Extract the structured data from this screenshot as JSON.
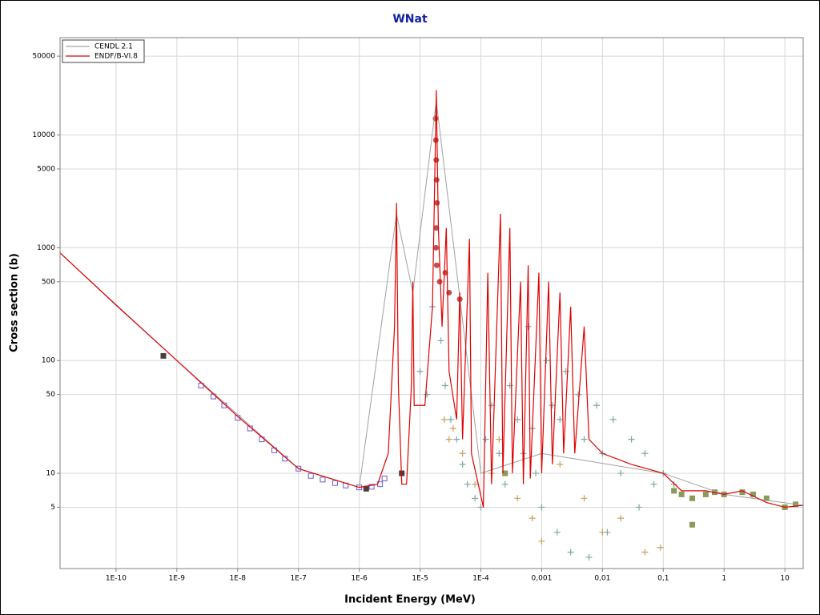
{
  "chart_data": {
    "type": "line",
    "title": "WNat",
    "xlabel": "Incident Energy (MeV)",
    "ylabel": "Cross section (b)",
    "xscale": "log",
    "yscale": "log",
    "grid": true,
    "legend": "upper left",
    "xlim": [
      1.2e-11,
      20
    ],
    "ylim": [
      1.43,
      73000
    ],
    "xticks": [
      {
        "value": 1e-10,
        "label": "1E-10"
      },
      {
        "value": 1e-09,
        "label": "1E-9"
      },
      {
        "value": 1e-08,
        "label": "1E-8"
      },
      {
        "value": 1e-07,
        "label": "1E-7"
      },
      {
        "value": 1e-06,
        "label": "1E-6"
      },
      {
        "value": 1e-05,
        "label": "1E-5"
      },
      {
        "value": 0.0001,
        "label": "1E-4"
      },
      {
        "value": 0.001,
        "label": "0,001"
      },
      {
        "value": 0.01,
        "label": "0,01"
      },
      {
        "value": 0.1,
        "label": "0,1"
      },
      1,
      10
    ],
    "yticks": [
      5,
      10,
      50,
      100,
      500,
      1000,
      5000,
      10000,
      50000
    ],
    "series": [
      {
        "name": "CENDL 2.1",
        "color": "#a0a0a0",
        "x": [
          1.2e-11,
          1e-09,
          1e-07,
          1e-06,
          4.1e-06,
          7.6e-06,
          1.85e-05,
          0.0001,
          0.001,
          0.1,
          1,
          20
        ],
        "values": [
          900,
          100,
          11,
          7.5,
          2000,
          400,
          20000,
          10,
          15,
          10,
          6.5,
          5.2
        ]
      },
      {
        "name": "ENDF/B-VI.8",
        "color": "#e00000",
        "x": [
          1.2e-11,
          1e-10,
          1e-09,
          1e-08,
          1e-07,
          1e-06,
          2e-06,
          3e-06,
          3.8e-06,
          4.1e-06,
          4.4e-06,
          5e-06,
          6e-06,
          7.2e-06,
          7.6e-06,
          8e-06,
          1.2e-05,
          1.6e-05,
          1.85e-05,
          2e-05,
          2.3e-05,
          2.7e-05,
          3e-05,
          4e-05,
          4.5e-05,
          5e-05,
          6.5e-05,
          7e-05,
          0.00011,
          0.00013,
          0.00015,
          0.00021,
          0.00023,
          0.0003,
          0.00033,
          0.00045,
          0.0005,
          0.0006,
          0.00065,
          0.0009,
          0.001,
          0.0013,
          0.0015,
          0.002,
          0.0023,
          0.003,
          0.0035,
          0.005,
          0.006,
          0.01,
          0.03,
          0.1,
          0.2,
          0.5,
          1,
          2,
          5,
          10,
          20
        ],
        "values": [
          900,
          310,
          100,
          32,
          11,
          7.5,
          8,
          15,
          200,
          2500,
          60,
          8,
          8,
          60,
          500,
          40,
          40,
          300,
          25000,
          1500,
          200,
          1500,
          80,
          30,
          400,
          20,
          1200,
          15,
          5,
          600,
          8,
          2000,
          10,
          1500,
          10,
          500,
          8,
          700,
          9,
          600,
          10,
          500,
          12,
          400,
          15,
          300,
          15,
          200,
          20,
          15,
          12,
          10,
          7,
          7,
          6.5,
          7,
          5.5,
          5,
          5.2
        ]
      }
    ],
    "points": [
      {
        "color": "#7fa6a6",
        "marker": "cross",
        "x": [
          1e-05,
          1.3e-05,
          1.6e-05,
          2.2e-05,
          2.6e-05,
          3.2e-05,
          4e-05,
          5e-05,
          6e-05,
          8e-05,
          0.0001,
          0.00012,
          0.00015,
          0.0002,
          0.00025,
          0.0003,
          0.0004,
          0.0005,
          0.0006,
          0.0007,
          0.0008,
          0.001,
          0.0012,
          0.0015,
          0.0018,
          0.002,
          0.0025,
          0.003,
          0.004,
          0.005,
          0.006,
          0.008,
          0.01,
          0.012,
          0.015,
          0.02,
          0.03,
          0.04,
          0.05,
          0.07,
          0.1,
          0.15
        ],
        "y": [
          80,
          50,
          300,
          150,
          60,
          30,
          20,
          12,
          8,
          6,
          5,
          20,
          40,
          15,
          8,
          60,
          30,
          15,
          200,
          25,
          10,
          5,
          100,
          40,
          3,
          30,
          80,
          2,
          50,
          20,
          1.8,
          40,
          15,
          3,
          30,
          10,
          20,
          5,
          15,
          8,
          10,
          8
        ]
      },
      {
        "color": "#c8a060",
        "marker": "cross",
        "x": [
          2.5e-05,
          3e-05,
          3.5e-05,
          5e-05,
          8e-05,
          0.00015,
          0.0002,
          0.0004,
          0.0007,
          0.001,
          0.002,
          0.005,
          0.01,
          0.02,
          0.05,
          0.09
        ],
        "y": [
          30,
          20,
          25,
          15,
          8,
          10,
          20,
          6,
          4,
          2.5,
          12,
          6,
          3,
          4,
          2,
          2.2
        ]
      },
      {
        "color": "#6a5acd",
        "marker": "open-square",
        "x": [
          2.5e-09,
          4e-09,
          6e-09,
          1e-08,
          1.6e-08,
          2.5e-08,
          4e-08,
          6e-08,
          1e-07,
          1.6e-07,
          2.5e-07,
          4e-07,
          6e-07,
          1e-06,
          1.6e-06,
          2.2e-06,
          2.6e-06
        ],
        "y": [
          60,
          48,
          40,
          31,
          25,
          20,
          16,
          13.5,
          11,
          9.5,
          8.8,
          8.2,
          7.8,
          7.5,
          7.6,
          8,
          9
        ]
      },
      {
        "color": "#c0504d",
        "marker": "circle",
        "x": [
          1.8e-05,
          1.82e-05,
          1.85e-05,
          1.87e-05,
          1.9e-05,
          1.85e-05,
          1.83e-05,
          1.88e-05,
          2.1e-05,
          2.6e-05,
          3e-05,
          4.5e-05
        ],
        "y": [
          14000,
          9000,
          6000,
          4000,
          2500,
          1500,
          1000,
          700,
          500,
          600,
          400,
          350
        ]
      },
      {
        "color": "#8a9a5b",
        "marker": "square",
        "x": [
          0.00025,
          0.3,
          0.15,
          0.2,
          0.3,
          0.5,
          0.7,
          1,
          2,
          3,
          5,
          10,
          15
        ],
        "y": [
          10,
          3.5,
          7,
          6.5,
          6,
          6.5,
          6.8,
          6.5,
          6.8,
          6.5,
          6,
          5,
          5.3
        ]
      },
      {
        "color": "#4a3f3a",
        "marker": "square",
        "x": [
          6e-10,
          1.3e-06,
          5e-06
        ],
        "y": [
          110,
          7.3,
          10
        ]
      }
    ]
  }
}
